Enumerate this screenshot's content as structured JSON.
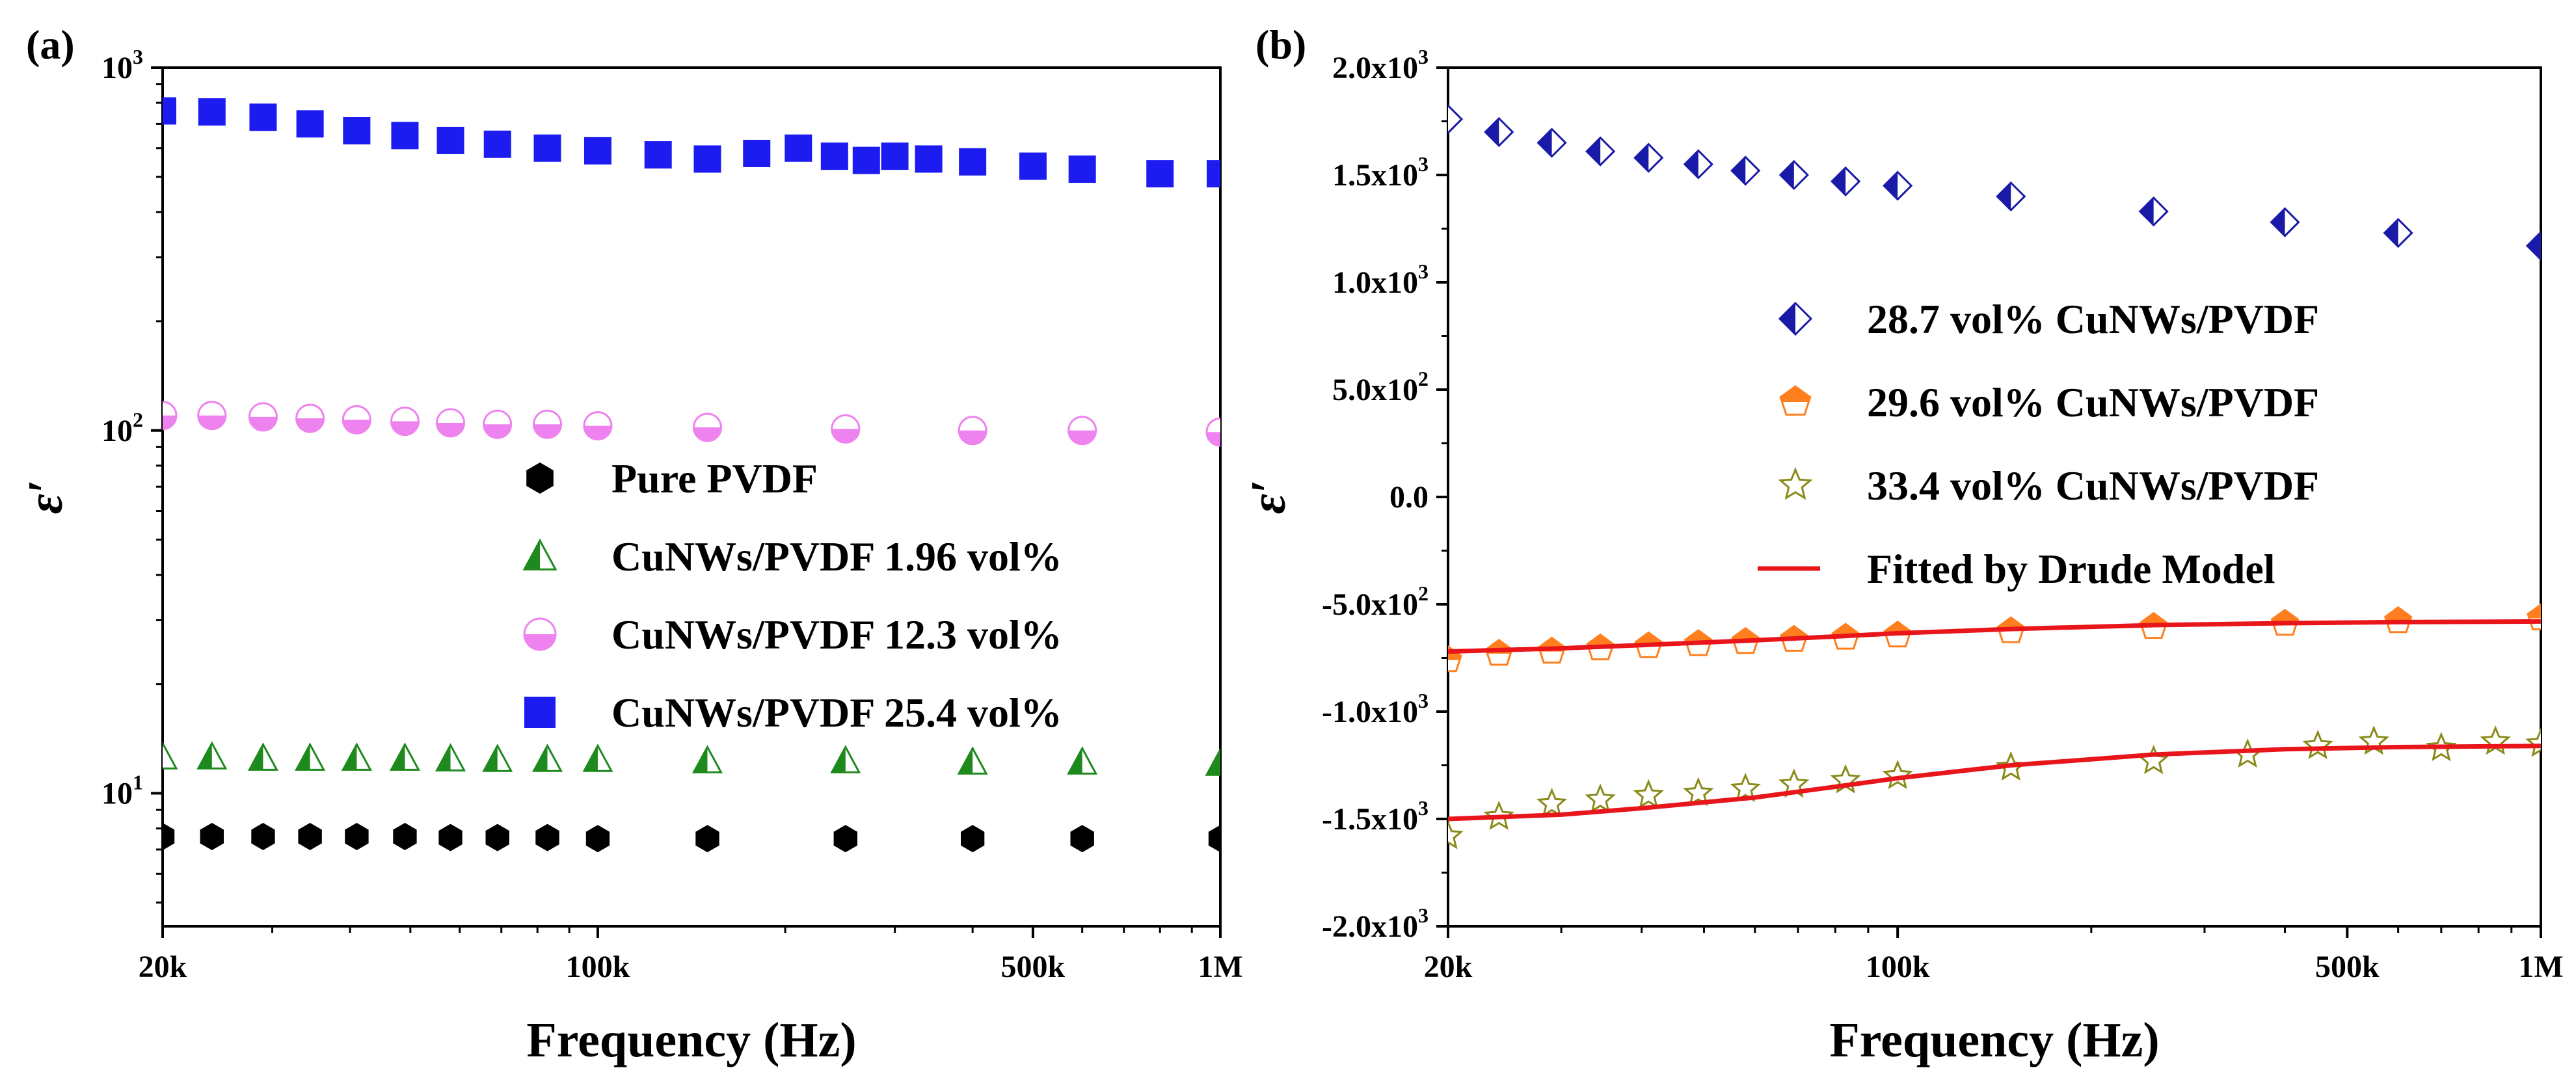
{
  "chart_data": [
    {
      "panel": "(a)",
      "type": "scatter",
      "xlabel": "Frequency (Hz)",
      "ylabel": "ε′",
      "xscale": "log",
      "yscale": "log",
      "xlim": [
        20000,
        1000000
      ],
      "ylim": [
        4.3,
        1000
      ],
      "xticks": [
        {
          "value": 20000,
          "label": "20k"
        },
        {
          "value": 100000,
          "label": "100k"
        },
        {
          "value": 500000,
          "label": "500k"
        },
        {
          "value": 1000000,
          "label": "1M"
        }
      ],
      "yticks": [
        {
          "value": 10,
          "label": "10",
          "exp": "1"
        },
        {
          "value": 100,
          "label": "10",
          "exp": "2"
        },
        {
          "value": 1000,
          "label": "10",
          "exp": "3"
        }
      ],
      "legend_position": "center",
      "series": [
        {
          "name": "Pure PVDF",
          "marker": "hexagon",
          "color": "#000000",
          "x": [
            20000,
            24000,
            29000,
            34500,
            41000,
            49000,
            58000,
            69000,
            83000,
            100000,
            150000,
            250000,
            400000,
            600000,
            1000000
          ],
          "y": [
            7.6,
            7.6,
            7.6,
            7.6,
            7.6,
            7.6,
            7.55,
            7.55,
            7.55,
            7.5,
            7.5,
            7.5,
            7.5,
            7.5,
            7.5
          ]
        },
        {
          "name": "CuNWs/PVDF 1.96 vol%",
          "marker": "half-triangle",
          "color": "#1e8a1e",
          "x": [
            20000,
            24000,
            29000,
            34500,
            41000,
            49000,
            58000,
            69000,
            83000,
            100000,
            150000,
            250000,
            400000,
            600000,
            1000000
          ],
          "y": [
            12.6,
            12.6,
            12.5,
            12.5,
            12.5,
            12.5,
            12.45,
            12.4,
            12.4,
            12.4,
            12.3,
            12.3,
            12.2,
            12.2,
            12.1
          ]
        },
        {
          "name": "CuNWs/PVDF 12.3 vol%",
          "marker": "half-circle",
          "color": "#ee82ee",
          "x": [
            20000,
            24000,
            29000,
            34500,
            41000,
            49000,
            58000,
            69000,
            83000,
            100000,
            150000,
            250000,
            400000,
            600000,
            1000000
          ],
          "y": [
            110,
            110,
            109,
            108,
            107,
            106,
            105,
            104,
            104,
            103,
            102,
            101,
            100,
            100,
            99
          ]
        },
        {
          "name": "CuNWs/PVDF 25.4 vol%",
          "marker": "square",
          "color": "#1c1cf0",
          "x": [
            20000,
            24000,
            29000,
            34500,
            41000,
            49000,
            58000,
            69000,
            83000,
            100000,
            125000,
            150000,
            180000,
            210000,
            240000,
            270000,
            300000,
            340000,
            400000,
            500000,
            600000,
            800000,
            1000000
          ],
          "y": [
            760,
            755,
            730,
            700,
            670,
            650,
            630,
            615,
            600,
            590,
            575,
            560,
            580,
            600,
            570,
            555,
            570,
            560,
            550,
            535,
            525,
            510,
            510
          ]
        }
      ]
    },
    {
      "panel": "(b)",
      "type": "scatter",
      "xlabel": "Frequency (Hz)",
      "ylabel": "ε′",
      "xscale": "log",
      "yscale": "linear",
      "xlim": [
        20000,
        1000000
      ],
      "ylim": [
        -2000,
        2000
      ],
      "xticks": [
        {
          "value": 20000,
          "label": "20k"
        },
        {
          "value": 100000,
          "label": "100k"
        },
        {
          "value": 500000,
          "label": "500k"
        },
        {
          "value": 1000000,
          "label": "1M"
        }
      ],
      "yticks": [
        {
          "value": 2000,
          "label": "2.0x10",
          "exp": "3"
        },
        {
          "value": 1500,
          "label": "1.5x10",
          "exp": "3"
        },
        {
          "value": 1000,
          "label": "1.0x10",
          "exp": "3"
        },
        {
          "value": 500,
          "label": "5.0x10",
          "exp": "2"
        },
        {
          "value": 0,
          "label": "0.0",
          "exp": ""
        },
        {
          "value": -500,
          "label": "-5.0x10",
          "exp": "2"
        },
        {
          "value": -1000,
          "label": "-1.0x10",
          "exp": "3"
        },
        {
          "value": -1500,
          "label": "-1.5x10",
          "exp": "3"
        },
        {
          "value": -2000,
          "label": "-2.0x10",
          "exp": "3"
        }
      ],
      "legend_position": "upper-right",
      "series": [
        {
          "name": "28.7 vol% CuNWs/PVDF",
          "marker": "half-diamond",
          "color": "#1a1aa8",
          "x": [
            20000,
            24000,
            29000,
            34500,
            41000,
            49000,
            58000,
            69000,
            83000,
            100000,
            150000,
            250000,
            400000,
            600000,
            1000000
          ],
          "y": [
            1760,
            1700,
            1650,
            1610,
            1580,
            1550,
            1520,
            1500,
            1470,
            1450,
            1400,
            1330,
            1280,
            1230,
            1170
          ]
        },
        {
          "name": "29.6 vol% CuNWs/PVDF",
          "marker": "half-pentagon",
          "color": "#ff7f1e",
          "x": [
            20000,
            24000,
            29000,
            34500,
            41000,
            49000,
            58000,
            69000,
            83000,
            100000,
            150000,
            250000,
            400000,
            600000,
            1000000
          ],
          "y": [
            -760,
            -730,
            -720,
            -705,
            -695,
            -685,
            -675,
            -665,
            -655,
            -645,
            -625,
            -605,
            -590,
            -578,
            -565
          ]
        },
        {
          "name": "33.4 vol% CuNWs/PVDF",
          "marker": "star",
          "color": "#8a8a1a",
          "x": [
            20000,
            24000,
            29000,
            34500,
            41000,
            49000,
            58000,
            69000,
            83000,
            100000,
            150000,
            250000,
            350000,
            450000,
            550000,
            700000,
            850000,
            1000000
          ],
          "y": [
            -1580,
            -1490,
            -1430,
            -1410,
            -1390,
            -1380,
            -1360,
            -1340,
            -1320,
            -1300,
            -1260,
            -1230,
            -1200,
            -1160,
            -1140,
            -1170,
            -1140,
            -1150
          ]
        },
        {
          "name": "Fitted by Drude Model",
          "marker": "line",
          "color": "#e8151b",
          "lines": [
            {
              "x": [
                20000,
                30000,
                40000,
                60000,
                80000,
                100000,
                150000,
                250000,
                400000,
                600000,
                1000000
              ],
              "y": [
                -720,
                -705,
                -690,
                -668,
                -650,
                -635,
                -615,
                -597,
                -588,
                -583,
                -580
              ]
            },
            {
              "x": [
                20000,
                30000,
                40000,
                60000,
                80000,
                100000,
                150000,
                250000,
                400000,
                600000,
                1000000
              ],
              "y": [
                -1500,
                -1480,
                -1450,
                -1400,
                -1350,
                -1310,
                -1250,
                -1200,
                -1175,
                -1165,
                -1160
              ]
            }
          ]
        }
      ]
    }
  ]
}
